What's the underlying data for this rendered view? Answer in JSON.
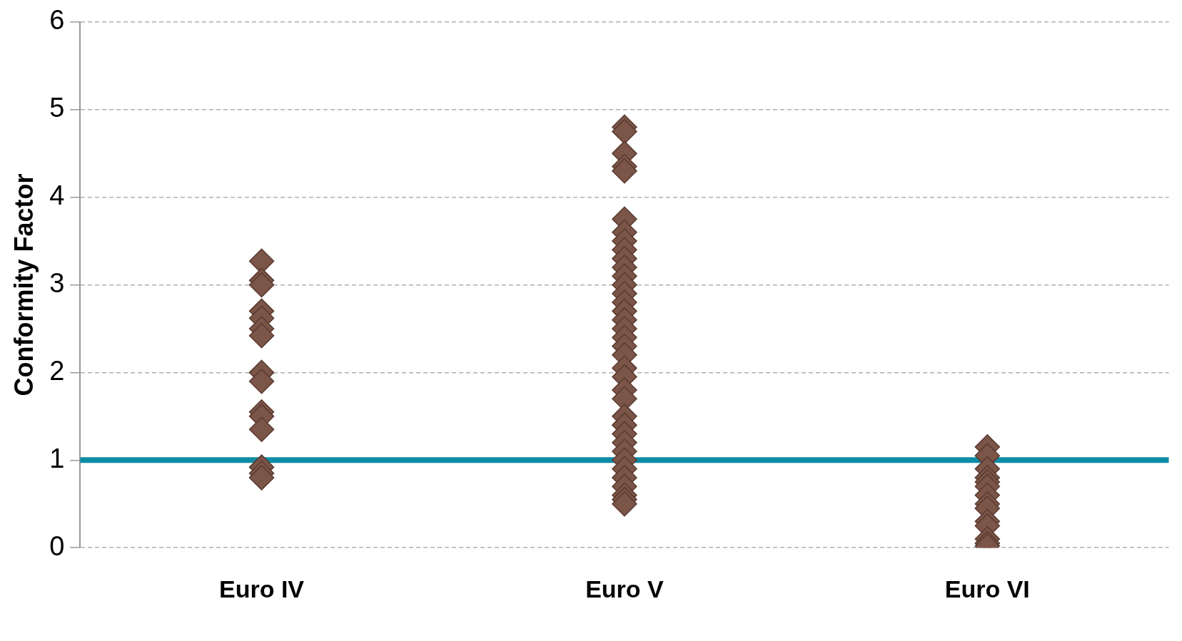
{
  "chart_data": {
    "type": "scatter",
    "ylabel": "Conformity Factor",
    "categories": [
      "Euro IV",
      "Euro V",
      "Euro VI"
    ],
    "series": [
      {
        "color": "#7a5548",
        "x": [
          "Euro IV",
          "Euro IV",
          "Euro IV",
          "Euro IV",
          "Euro IV",
          "Euro IV",
          "Euro IV",
          "Euro IV",
          "Euro IV",
          "Euro IV",
          "Euro IV",
          "Euro IV",
          "Euro IV",
          "Euro IV",
          "Euro IV",
          "Euro V",
          "Euro V",
          "Euro V",
          "Euro V",
          "Euro V",
          "Euro V",
          "Euro V",
          "Euro V",
          "Euro V",
          "Euro V",
          "Euro V",
          "Euro V",
          "Euro V",
          "Euro V",
          "Euro V",
          "Euro V",
          "Euro V",
          "Euro V",
          "Euro V",
          "Euro V",
          "Euro V",
          "Euro V",
          "Euro V",
          "Euro V",
          "Euro V",
          "Euro V",
          "Euro V",
          "Euro V",
          "Euro V",
          "Euro V",
          "Euro V",
          "Euro V",
          "Euro V",
          "Euro V",
          "Euro V",
          "Euro V",
          "Euro V",
          "Euro VI",
          "Euro VI",
          "Euro VI",
          "Euro VI",
          "Euro VI",
          "Euro VI",
          "Euro VI",
          "Euro VI",
          "Euro VI",
          "Euro VI",
          "Euro VI",
          "Euro VI",
          "Euro VI",
          "Euro VI"
        ],
        "values": [
          3.27,
          3.05,
          3.0,
          2.7,
          2.62,
          2.5,
          2.42,
          2.0,
          1.9,
          1.55,
          1.5,
          1.35,
          0.92,
          0.85,
          0.8,
          4.8,
          4.75,
          4.5,
          4.35,
          4.3,
          3.75,
          3.6,
          3.5,
          3.4,
          3.3,
          3.2,
          3.1,
          3.0,
          2.9,
          2.8,
          2.7,
          2.6,
          2.5,
          2.4,
          2.3,
          2.2,
          2.05,
          1.95,
          1.8,
          1.7,
          1.5,
          1.4,
          1.3,
          1.2,
          1.1,
          1.0,
          0.9,
          0.8,
          0.7,
          0.6,
          0.55,
          0.5,
          1.15,
          1.05,
          0.9,
          0.8,
          0.75,
          0.7,
          0.6,
          0.5,
          0.45,
          0.3,
          0.25,
          0.1,
          0.05,
          0.02
        ]
      }
    ],
    "ylim": [
      0,
      6
    ],
    "yticks": [
      0,
      1,
      2,
      3,
      4,
      5,
      6
    ],
    "grid": "y",
    "marker": "diamond",
    "legend": false,
    "ref_lines": [
      {
        "axis": "y",
        "value": 1,
        "color": "#0e8ca5"
      }
    ]
  }
}
